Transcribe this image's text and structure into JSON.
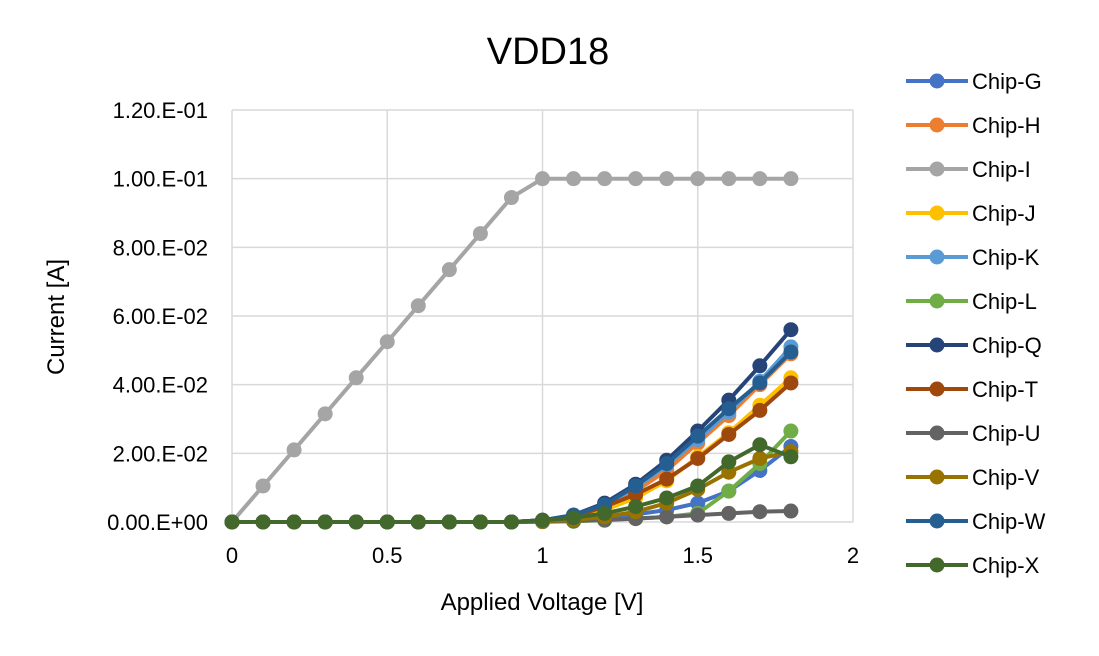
{
  "chart_data": {
    "type": "line",
    "title": "VDD18",
    "xlabel": "Applied Voltage [V]",
    "ylabel": "Current [A]",
    "xlim": [
      0,
      2
    ],
    "ylim": [
      0,
      0.12
    ],
    "x_ticks": [
      "0",
      "0.5",
      "1",
      "1.5",
      "2"
    ],
    "y_ticks": [
      "0.00.E+00",
      "2.00.E-02",
      "4.00.E-02",
      "6.00.E-02",
      "8.00.E-02",
      "1.00.E-01",
      "1.20.E-01"
    ],
    "grid": true,
    "legend_position": "right",
    "x": [
      0,
      0.1,
      0.2,
      0.3,
      0.4,
      0.5,
      0.6,
      0.7,
      0.8,
      0.9,
      1.0,
      1.1,
      1.2,
      1.3,
      1.4,
      1.5,
      1.6,
      1.7,
      1.8
    ],
    "series": [
      {
        "name": "Chip-G",
        "color": "#4472C4",
        "values": [
          0,
          0,
          0,
          0,
          0,
          0,
          0,
          0,
          0,
          0,
          0.0002,
          0.0005,
          0.0012,
          0.0022,
          0.0035,
          0.0055,
          0.009,
          0.015,
          0.022
        ]
      },
      {
        "name": "Chip-H",
        "color": "#ED7D31",
        "values": [
          0,
          0,
          0,
          0,
          0,
          0,
          0,
          0,
          0,
          0,
          0.0004,
          0.0015,
          0.0045,
          0.009,
          0.015,
          0.023,
          0.031,
          0.04,
          0.049
        ]
      },
      {
        "name": "Chip-I",
        "color": "#A5A5A5",
        "values": [
          0,
          0.0105,
          0.021,
          0.0315,
          0.042,
          0.0525,
          0.063,
          0.0735,
          0.084,
          0.0945,
          0.1,
          0.1,
          0.1,
          0.1,
          0.1,
          0.1,
          0.1,
          0.1,
          0.1
        ]
      },
      {
        "name": "Chip-J",
        "color": "#FFC000",
        "values": [
          0,
          0,
          0,
          0,
          0,
          0,
          0,
          0,
          0,
          0,
          0.0003,
          0.0012,
          0.0035,
          0.007,
          0.012,
          0.019,
          0.026,
          0.034,
          0.042
        ]
      },
      {
        "name": "Chip-K",
        "color": "#5B9BD5",
        "values": [
          0,
          0,
          0,
          0,
          0,
          0,
          0,
          0,
          0,
          0,
          0.0005,
          0.002,
          0.005,
          0.01,
          0.0165,
          0.024,
          0.032,
          0.041,
          0.051
        ]
      },
      {
        "name": "Chip-L",
        "color": "#70AD47",
        "values": [
          0,
          0,
          0,
          0,
          0,
          0,
          0,
          0,
          0,
          0,
          0.0001,
          0.0002,
          0.0005,
          0.001,
          0.0015,
          0.0025,
          0.009,
          0.017,
          0.0265
        ]
      },
      {
        "name": "Chip-Q",
        "color": "#264478",
        "values": [
          0,
          0,
          0,
          0,
          0,
          0,
          0,
          0,
          0,
          0,
          0.0005,
          0.002,
          0.0055,
          0.011,
          0.018,
          0.0265,
          0.0355,
          0.0455,
          0.056
        ]
      },
      {
        "name": "Chip-T",
        "color": "#9E480E",
        "values": [
          0,
          0,
          0,
          0,
          0,
          0,
          0,
          0,
          0,
          0,
          0.0004,
          0.0015,
          0.0045,
          0.008,
          0.0125,
          0.0185,
          0.0255,
          0.0325,
          0.0405
        ]
      },
      {
        "name": "Chip-U",
        "color": "#636363",
        "values": [
          0,
          0,
          0,
          0,
          0,
          0,
          0,
          0,
          0,
          0,
          0.0001,
          0.0003,
          0.0006,
          0.001,
          0.0015,
          0.002,
          0.0025,
          0.003,
          0.0032
        ]
      },
      {
        "name": "Chip-V",
        "color": "#997300",
        "values": [
          0,
          0,
          0,
          0,
          0,
          0,
          0,
          0,
          0,
          0,
          0.0002,
          0.0006,
          0.0015,
          0.003,
          0.0055,
          0.0095,
          0.0145,
          0.0185,
          0.0205
        ]
      },
      {
        "name": "Chip-W",
        "color": "#255E91",
        "values": [
          0,
          0,
          0,
          0,
          0,
          0,
          0,
          0,
          0,
          0,
          0.0005,
          0.002,
          0.005,
          0.0105,
          0.017,
          0.025,
          0.033,
          0.0405,
          0.0495
        ]
      },
      {
        "name": "Chip-X",
        "color": "#43682B",
        "values": [
          0,
          0,
          0,
          0,
          0,
          0,
          0,
          0,
          0,
          0,
          0.0005,
          0.0012,
          0.0025,
          0.0045,
          0.007,
          0.0105,
          0.0175,
          0.0225,
          0.019
        ]
      }
    ]
  }
}
